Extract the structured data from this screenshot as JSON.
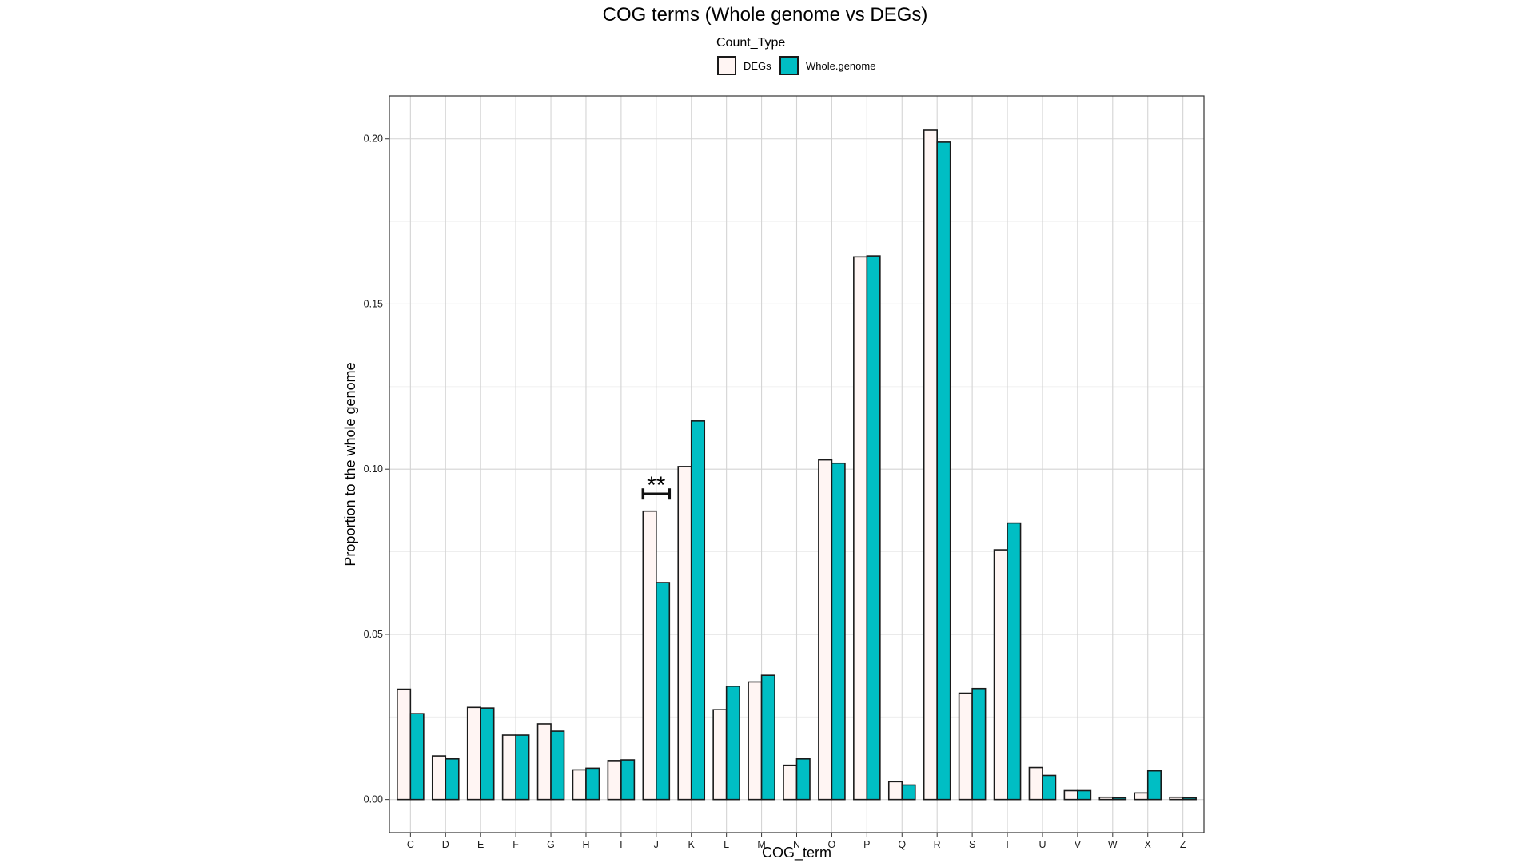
{
  "chart_data": {
    "type": "bar",
    "title": "COG terms (Whole genome vs DEGs)",
    "xlabel": "COG_term",
    "ylabel": "Proportion to the whole genome",
    "categories": [
      "C",
      "D",
      "E",
      "F",
      "G",
      "H",
      "I",
      "J",
      "K",
      "L",
      "M",
      "N",
      "O",
      "P",
      "Q",
      "R",
      "S",
      "T",
      "U",
      "V",
      "W",
      "X",
      "Z"
    ],
    "series": [
      {
        "name": "DEGs",
        "color": "#fff5f3",
        "values": [
          0.0334,
          0.0132,
          0.0279,
          0.0195,
          0.0229,
          0.009,
          0.0118,
          0.0873,
          0.1008,
          0.0272,
          0.0356,
          0.0104,
          0.1028,
          0.1643,
          0.0054,
          0.2026,
          0.0322,
          0.0756,
          0.0097,
          0.0027,
          0.0007,
          0.002,
          0.0007
        ]
      },
      {
        "name": "Whole.genome",
        "color": "#00bec4",
        "values": [
          0.026,
          0.0123,
          0.0277,
          0.0195,
          0.0207,
          0.0095,
          0.012,
          0.0657,
          0.1146,
          0.0343,
          0.0376,
          0.0123,
          0.1018,
          0.1646,
          0.0044,
          0.199,
          0.0336,
          0.0837,
          0.0073,
          0.0027,
          0.0005,
          0.0087,
          0.0005
        ]
      }
    ],
    "ylim": [
      -0.01,
      0.213
    ],
    "yticks": [
      "0.00",
      "0.05",
      "0.10",
      "0.15",
      "0.20"
    ],
    "grid": true,
    "legend": {
      "title": "Count_Type",
      "position": "top",
      "entries": [
        "DEGs",
        "Whole.genome"
      ]
    },
    "annotations": [
      {
        "category": "J",
        "text": "**",
        "y": 0.0925
      }
    ]
  }
}
